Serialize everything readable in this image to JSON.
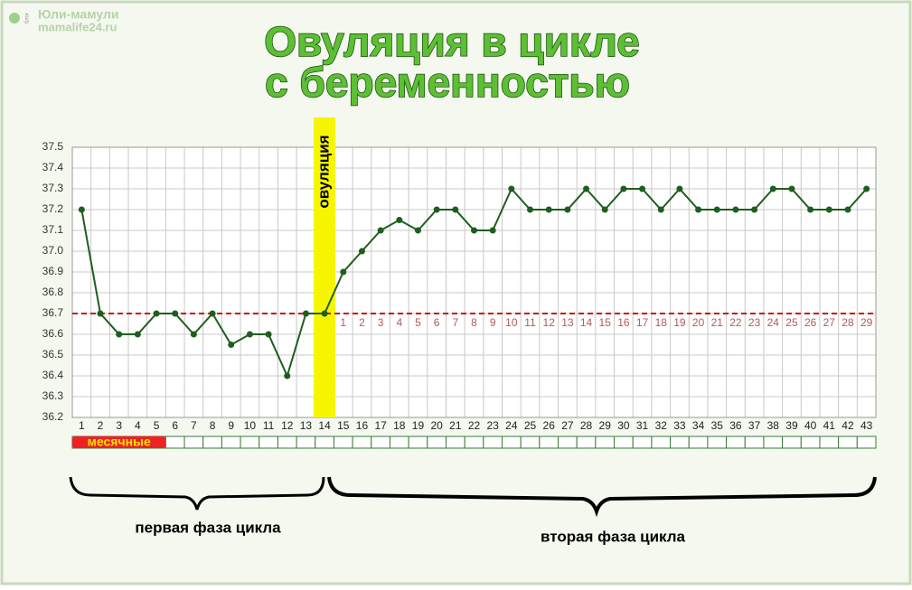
{
  "chart_data": {
    "type": "line",
    "title": [
      "Овуляция в цикле",
      "с беременностью"
    ],
    "watermark": [
      "блог",
      "Юли-мамули",
      "mamalife24.ru"
    ],
    "categories": [
      1,
      2,
      3,
      4,
      5,
      6,
      7,
      8,
      9,
      10,
      11,
      12,
      13,
      14,
      15,
      16,
      17,
      18,
      19,
      20,
      21,
      22,
      23,
      24,
      25,
      26,
      27,
      28,
      29,
      30,
      31,
      32,
      33,
      34,
      35,
      36,
      37,
      38,
      39,
      40,
      41,
      42,
      43
    ],
    "values": [
      37.2,
      36.7,
      36.6,
      36.6,
      36.7,
      36.7,
      36.6,
      36.7,
      36.55,
      36.6,
      36.6,
      36.4,
      36.7,
      36.7,
      36.9,
      37.0,
      37.1,
      37.15,
      37.1,
      37.2,
      37.2,
      37.1,
      37.1,
      37.3,
      37.2,
      37.2,
      37.2,
      37.3,
      37.2,
      37.3,
      37.3,
      37.2,
      37.3,
      37.2,
      37.2,
      37.2,
      37.2,
      37.3,
      37.3,
      37.2,
      37.2,
      37.2,
      37.3
    ],
    "color": "#1e5e1e",
    "ylim": [
      36.2,
      37.5
    ],
    "yticks": [
      36.2,
      36.3,
      36.4,
      36.5,
      36.6,
      36.7,
      36.8,
      36.9,
      {
        "value": 37,
        "label": "37.0"
      },
      37.1,
      37.2,
      37.3,
      37.4,
      37.5
    ],
    "grid": true,
    "cover_line": 36.7,
    "cover_line_color": "#cc1111",
    "post_ovulation_days": [
      1,
      2,
      3,
      4,
      5,
      6,
      7,
      8,
      9,
      10,
      11,
      12,
      13,
      14,
      15,
      16,
      17,
      18,
      19,
      20,
      21,
      22,
      23,
      24,
      25,
      26,
      27,
      28,
      29
    ],
    "ovulation_day": 14,
    "ovulation_label": "овуляция",
    "menses_label": "месячные",
    "phase_labels": [
      "первая фаза цикла",
      "вторая фаза цикла"
    ]
  }
}
